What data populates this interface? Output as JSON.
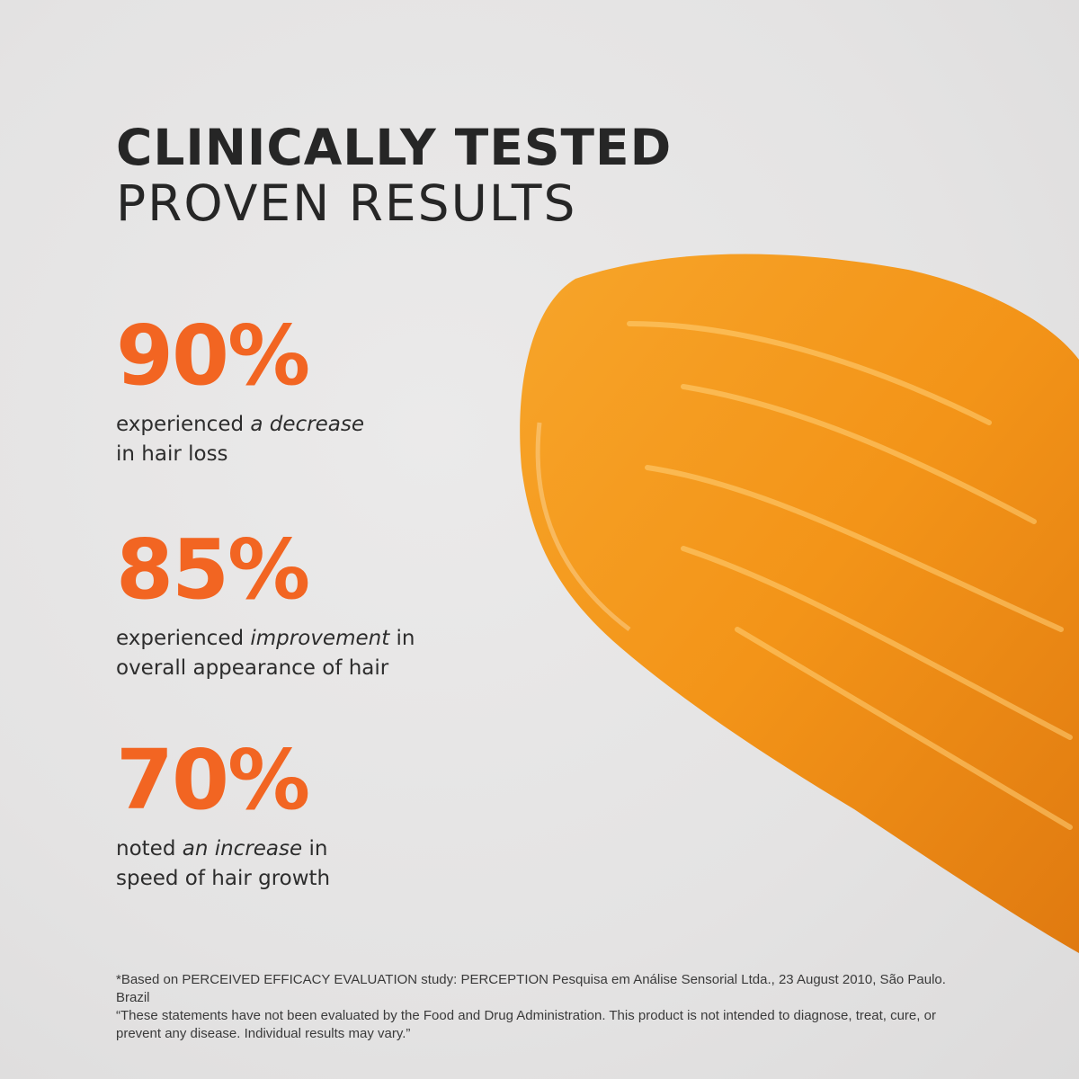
{
  "heading": {
    "line1": "CLINICALLY TESTED",
    "line2": "PROVEN RESULTS"
  },
  "stats": [
    {
      "value": "90%",
      "pre": "experienced ",
      "em": "a decrease",
      "post": "",
      "line2": "in hair loss"
    },
    {
      "value": "85%",
      "pre": "experienced ",
      "em": "improvement",
      "post": " in",
      "line2": "overall appearance of hair"
    },
    {
      "value": "70%",
      "pre": "noted ",
      "em": "an increase",
      "post": " in",
      "line2": "speed of hair growth"
    }
  ],
  "footnote": {
    "line1": "*Based on PERCEIVED EFFICACY EVALUATION study: PERCEPTION Pesquisa em Análise Sensorial Ltda., 23 August 2010, São Paulo. Brazil",
    "line2": "“These statements have not been evaluated by the Food and Drug Administration. This product is not intended to diagnose, treat, cure, or prevent any disease. Individual results may vary.”"
  },
  "colors": {
    "accent": "#f26522",
    "smear": "#f39a1e"
  }
}
